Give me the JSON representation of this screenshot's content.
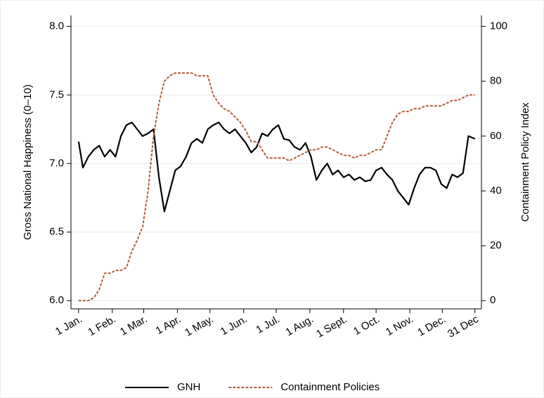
{
  "chart_data": {
    "type": "line",
    "y_label": "Gross National Happiness (0–10)",
    "y2_label": "Containment Policy Index",
    "x": [
      1,
      5,
      10,
      15,
      20,
      25,
      30,
      35,
      40,
      45,
      50,
      55,
      60,
      65,
      70,
      75,
      80,
      85,
      90,
      95,
      100,
      105,
      110,
      115,
      120,
      125,
      130,
      135,
      140,
      145,
      150,
      155,
      160,
      165,
      170,
      175,
      180,
      185,
      190,
      195,
      200,
      205,
      210,
      215,
      220,
      225,
      230,
      235,
      240,
      245,
      250,
      255,
      260,
      265,
      270,
      275,
      280,
      285,
      290,
      295,
      300,
      305,
      310,
      315,
      320,
      325,
      330,
      335,
      340,
      345,
      350,
      355,
      360,
      366
    ],
    "series": [
      {
        "name": "GNH",
        "color": "#000000",
        "line_style": "solid",
        "axis": "y",
        "values": [
          7.16,
          6.97,
          7.05,
          7.1,
          7.13,
          7.05,
          7.1,
          7.05,
          7.2,
          7.28,
          7.3,
          7.25,
          7.2,
          7.22,
          7.25,
          6.9,
          6.65,
          6.8,
          6.95,
          6.98,
          7.05,
          7.15,
          7.18,
          7.15,
          7.25,
          7.28,
          7.3,
          7.25,
          7.22,
          7.25,
          7.2,
          7.15,
          7.08,
          7.12,
          7.22,
          7.2,
          7.25,
          7.28,
          7.18,
          7.17,
          7.12,
          7.1,
          7.15,
          7.05,
          6.88,
          6.95,
          7.0,
          6.92,
          6.95,
          6.9,
          6.92,
          6.88,
          6.9,
          6.87,
          6.88,
          6.95,
          6.97,
          6.92,
          6.88,
          6.8,
          6.75,
          6.7,
          6.82,
          6.92,
          6.97,
          6.97,
          6.95,
          6.85,
          6.82,
          6.92,
          6.9,
          6.93,
          7.2,
          7.18
        ]
      },
      {
        "name": "Containment Policies",
        "color": "#b0603a",
        "line_style": "dashed",
        "axis": "y2",
        "values": [
          0,
          0,
          0,
          1,
          4,
          10,
          10,
          11,
          11,
          12,
          18,
          22,
          27,
          40,
          60,
          72,
          80,
          82,
          83,
          83,
          83,
          83,
          82,
          82,
          82,
          75,
          72,
          70,
          69,
          67,
          65,
          62,
          58,
          58,
          55,
          52,
          52,
          52,
          52,
          51,
          52,
          53,
          54,
          55,
          55,
          56,
          56,
          55,
          54,
          53,
          53,
          52,
          53,
          53,
          54,
          55,
          55,
          60,
          65,
          68,
          69,
          69,
          70,
          70,
          71,
          71,
          71,
          71,
          72,
          73,
          73,
          74,
          75,
          75
        ]
      }
    ],
    "xlim": [
      -6,
      372
    ],
    "xticks": [
      {
        "value": 1,
        "label": "1 Jan."
      },
      {
        "value": 32,
        "label": "1 Feb."
      },
      {
        "value": 61,
        "label": "1 Mar."
      },
      {
        "value": 92,
        "label": "1 Apr."
      },
      {
        "value": 122,
        "label": "1 May."
      },
      {
        "value": 153,
        "label": "1 Jun."
      },
      {
        "value": 183,
        "label": "1 Jul."
      },
      {
        "value": 214,
        "label": "1 Aug."
      },
      {
        "value": 245,
        "label": "1 Sept."
      },
      {
        "value": 275,
        "label": "1 Oct."
      },
      {
        "value": 306,
        "label": "1 Nov."
      },
      {
        "value": 336,
        "label": "1 Dec."
      },
      {
        "value": 366,
        "label": "31 Dec"
      }
    ],
    "ylim": [
      5.94,
      8.08
    ],
    "yticks": [
      {
        "value": 6,
        "label": "6.0"
      },
      {
        "value": 6.5,
        "label": "6.5"
      },
      {
        "value": 7,
        "label": "7.0"
      },
      {
        "value": 7.5,
        "label": "7.5"
      },
      {
        "value": 8,
        "label": "8.0"
      }
    ],
    "y2lim": [
      -3,
      104
    ],
    "y2ticks": [
      0,
      20,
      40,
      60,
      80,
      100
    ],
    "grid": true
  }
}
